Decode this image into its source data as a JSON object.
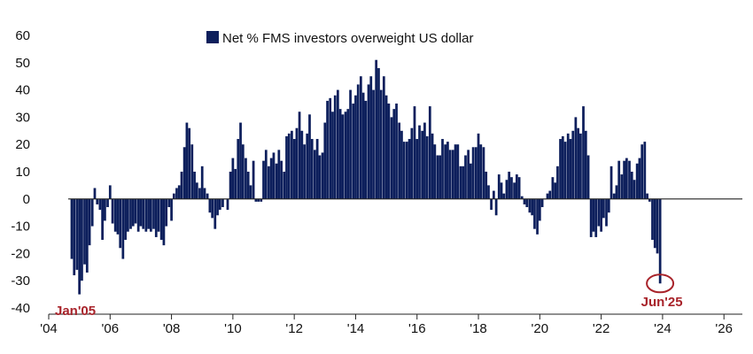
{
  "colors": {
    "bar": "#0d1f5c",
    "accent": "#a8232a",
    "axis": "#222222",
    "text": "#111111"
  },
  "chart_data": {
    "type": "bar",
    "legend": "Net % FMS investors overweight US dollar",
    "legend_position": "top-center",
    "grid": false,
    "ylim": [
      -40,
      60
    ],
    "yticks": [
      -40,
      -30,
      -20,
      -10,
      0,
      10,
      20,
      30,
      40,
      50,
      60
    ],
    "xlim": [
      2004.0,
      2026.6
    ],
    "xticks": [
      {
        "value": 2004,
        "label": "'04"
      },
      {
        "value": 2006,
        "label": "'06"
      },
      {
        "value": 2008,
        "label": "'08"
      },
      {
        "value": 2010,
        "label": "'10"
      },
      {
        "value": 2012,
        "label": "'12"
      },
      {
        "value": 2014,
        "label": "'14"
      },
      {
        "value": 2016,
        "label": "'16"
      },
      {
        "value": 2018,
        "label": "'18"
      },
      {
        "value": 2020,
        "label": "'20"
      },
      {
        "value": 2022,
        "label": "'22"
      },
      {
        "value": 2024,
        "label": "'24"
      },
      {
        "value": 2026,
        "label": "'26"
      }
    ],
    "series": [
      {
        "key": [
          [
            2004.75,
            -22
          ],
          [
            2004.83,
            -28
          ],
          [
            2004.92,
            -26
          ],
          [
            2005.0,
            -35
          ],
          [
            2005.08,
            -30
          ],
          [
            2005.17,
            -24
          ],
          [
            2005.25,
            -27
          ],
          [
            2005.33,
            -17
          ],
          [
            2005.42,
            -10
          ],
          [
            2005.5,
            4
          ],
          [
            2005.58,
            -2
          ],
          [
            2005.67,
            -4
          ],
          [
            2005.75,
            -15
          ],
          [
            2005.83,
            -8
          ],
          [
            2005.92,
            -3
          ],
          [
            2006.0,
            5
          ],
          [
            2006.08,
            -9
          ],
          [
            2006.17,
            -12
          ],
          [
            2006.25,
            -13
          ],
          [
            2006.33,
            -18
          ],
          [
            2006.42,
            -22
          ],
          [
            2006.5,
            -15
          ],
          [
            2006.58,
            -12
          ],
          [
            2006.67,
            -11
          ],
          [
            2006.75,
            -10
          ],
          [
            2006.83,
            -9
          ],
          [
            2006.92,
            -12
          ],
          [
            2007.0,
            -10
          ],
          [
            2007.08,
            -11
          ],
          [
            2007.17,
            -12
          ],
          [
            2007.25,
            -11
          ],
          [
            2007.33,
            -12
          ],
          [
            2007.42,
            -11
          ],
          [
            2007.5,
            -14
          ],
          [
            2007.58,
            -12
          ],
          [
            2007.67,
            -15
          ],
          [
            2007.75,
            -17
          ],
          [
            2007.83,
            -10
          ],
          [
            2007.92,
            -3
          ],
          [
            2008.0,
            -8
          ],
          [
            2008.08,
            2
          ],
          [
            2008.17,
            4
          ],
          [
            2008.25,
            5
          ],
          [
            2008.33,
            10
          ],
          [
            2008.42,
            19
          ],
          [
            2008.5,
            28
          ],
          [
            2008.58,
            26
          ],
          [
            2008.67,
            20
          ],
          [
            2008.75,
            10
          ],
          [
            2008.83,
            6
          ],
          [
            2008.92,
            4
          ],
          [
            2009.0,
            12
          ],
          [
            2009.08,
            4
          ],
          [
            2009.17,
            2
          ],
          [
            2009.25,
            -5
          ],
          [
            2009.33,
            -7
          ],
          [
            2009.42,
            -11
          ],
          [
            2009.5,
            -6
          ],
          [
            2009.58,
            -4
          ],
          [
            2009.67,
            -3
          ],
          [
            2009.75,
            0
          ],
          [
            2009.83,
            -4
          ],
          [
            2009.92,
            10
          ],
          [
            2010.0,
            15
          ],
          [
            2010.08,
            11
          ],
          [
            2010.17,
            22
          ],
          [
            2010.25,
            28
          ],
          [
            2010.33,
            20
          ],
          [
            2010.42,
            15
          ],
          [
            2010.5,
            10
          ],
          [
            2010.58,
            5
          ],
          [
            2010.67,
            14
          ],
          [
            2010.75,
            -1
          ],
          [
            2010.83,
            -1
          ],
          [
            2010.92,
            -1
          ],
          [
            2011.0,
            14
          ],
          [
            2011.08,
            18
          ],
          [
            2011.17,
            12
          ],
          [
            2011.25,
            15
          ],
          [
            2011.33,
            17
          ],
          [
            2011.42,
            13
          ],
          [
            2011.5,
            18
          ],
          [
            2011.58,
            14
          ],
          [
            2011.67,
            10
          ],
          [
            2011.75,
            23
          ],
          [
            2011.83,
            24
          ],
          [
            2011.92,
            25
          ],
          [
            2012.0,
            22
          ],
          [
            2012.08,
            26
          ],
          [
            2012.17,
            32
          ],
          [
            2012.25,
            25
          ],
          [
            2012.33,
            20
          ],
          [
            2012.42,
            24
          ],
          [
            2012.5,
            31
          ],
          [
            2012.58,
            22
          ],
          [
            2012.67,
            18
          ],
          [
            2012.75,
            22
          ],
          [
            2012.83,
            16
          ],
          [
            2012.92,
            17
          ],
          [
            2013.0,
            28
          ],
          [
            2013.08,
            36
          ],
          [
            2013.17,
            37
          ],
          [
            2013.25,
            32
          ],
          [
            2013.33,
            38
          ],
          [
            2013.42,
            40
          ],
          [
            2013.5,
            33
          ],
          [
            2013.58,
            31
          ],
          [
            2013.67,
            32
          ],
          [
            2013.75,
            33
          ],
          [
            2013.83,
            40
          ],
          [
            2013.92,
            35
          ],
          [
            2014.0,
            38
          ],
          [
            2014.08,
            42
          ],
          [
            2014.17,
            45
          ],
          [
            2014.25,
            39
          ],
          [
            2014.33,
            36
          ],
          [
            2014.42,
            42
          ],
          [
            2014.5,
            45
          ],
          [
            2014.58,
            40
          ],
          [
            2014.67,
            51
          ],
          [
            2014.75,
            48
          ],
          [
            2014.83,
            40
          ],
          [
            2014.92,
            45
          ],
          [
            2015.0,
            38
          ],
          [
            2015.08,
            35
          ],
          [
            2015.17,
            30
          ],
          [
            2015.25,
            33
          ],
          [
            2015.33,
            35
          ],
          [
            2015.42,
            28
          ],
          [
            2015.5,
            25
          ],
          [
            2015.58,
            21
          ],
          [
            2015.67,
            21
          ],
          [
            2015.75,
            22
          ],
          [
            2015.83,
            26
          ],
          [
            2015.92,
            34
          ],
          [
            2016.0,
            22
          ],
          [
            2016.08,
            27
          ],
          [
            2016.17,
            25
          ],
          [
            2016.25,
            28
          ],
          [
            2016.33,
            23
          ],
          [
            2016.42,
            34
          ],
          [
            2016.5,
            24
          ],
          [
            2016.58,
            20
          ],
          [
            2016.67,
            16
          ],
          [
            2016.75,
            16
          ],
          [
            2016.83,
            22
          ],
          [
            2016.92,
            20
          ],
          [
            2017.0,
            21
          ],
          [
            2017.08,
            18
          ],
          [
            2017.17,
            18
          ],
          [
            2017.25,
            20
          ],
          [
            2017.33,
            20
          ],
          [
            2017.42,
            12
          ],
          [
            2017.5,
            12
          ],
          [
            2017.58,
            16
          ],
          [
            2017.67,
            18
          ],
          [
            2017.75,
            13
          ],
          [
            2017.83,
            19
          ],
          [
            2017.92,
            19
          ],
          [
            2018.0,
            24
          ],
          [
            2018.08,
            20
          ],
          [
            2018.17,
            19
          ],
          [
            2018.25,
            10
          ],
          [
            2018.33,
            5
          ],
          [
            2018.42,
            -4
          ],
          [
            2018.5,
            3
          ],
          [
            2018.58,
            -6
          ],
          [
            2018.67,
            9
          ],
          [
            2018.75,
            6
          ],
          [
            2018.83,
            2
          ],
          [
            2018.92,
            7
          ],
          [
            2019.0,
            10
          ],
          [
            2019.08,
            8
          ],
          [
            2019.17,
            6
          ],
          [
            2019.25,
            9
          ],
          [
            2019.33,
            8
          ],
          [
            2019.42,
            1
          ],
          [
            2019.5,
            -2
          ],
          [
            2019.58,
            -3
          ],
          [
            2019.67,
            -5
          ],
          [
            2019.75,
            -6
          ],
          [
            2019.83,
            -11
          ],
          [
            2019.92,
            -13
          ],
          [
            2020.0,
            -8
          ],
          [
            2020.08,
            -3
          ],
          [
            2020.17,
            0
          ],
          [
            2020.25,
            2
          ],
          [
            2020.33,
            3
          ],
          [
            2020.42,
            8
          ],
          [
            2020.5,
            6
          ],
          [
            2020.58,
            12
          ],
          [
            2020.67,
            22
          ],
          [
            2020.75,
            23
          ],
          [
            2020.83,
            21
          ],
          [
            2020.92,
            24
          ],
          [
            2021.0,
            22
          ],
          [
            2021.08,
            25
          ],
          [
            2021.17,
            30
          ],
          [
            2021.25,
            26
          ],
          [
            2021.33,
            24
          ],
          [
            2021.42,
            34
          ],
          [
            2021.5,
            25
          ],
          [
            2021.58,
            16
          ],
          [
            2021.67,
            -14
          ],
          [
            2021.75,
            -12
          ],
          [
            2021.83,
            -14
          ],
          [
            2021.92,
            -10
          ],
          [
            2022.0,
            -12
          ],
          [
            2022.08,
            -7
          ],
          [
            2022.17,
            -10
          ],
          [
            2022.25,
            -5
          ],
          [
            2022.33,
            12
          ],
          [
            2022.42,
            2
          ],
          [
            2022.5,
            5
          ],
          [
            2022.58,
            14
          ],
          [
            2022.67,
            9
          ],
          [
            2022.75,
            14
          ],
          [
            2022.83,
            15
          ],
          [
            2022.92,
            14
          ],
          [
            2023.0,
            10
          ],
          [
            2023.08,
            7
          ],
          [
            2023.17,
            13
          ],
          [
            2023.25,
            15
          ],
          [
            2023.33,
            20
          ],
          [
            2023.42,
            21
          ],
          [
            2023.5,
            2
          ],
          [
            2023.58,
            -1
          ],
          [
            2023.67,
            -15
          ],
          [
            2023.75,
            -18
          ],
          [
            2023.83,
            -20
          ],
          [
            2023.92,
            -31
          ]
        ]
      }
    ],
    "annotations": [
      {
        "key": "start",
        "text": "Jan'05"
      },
      {
        "key": "end",
        "text": "Jun'25"
      }
    ]
  }
}
